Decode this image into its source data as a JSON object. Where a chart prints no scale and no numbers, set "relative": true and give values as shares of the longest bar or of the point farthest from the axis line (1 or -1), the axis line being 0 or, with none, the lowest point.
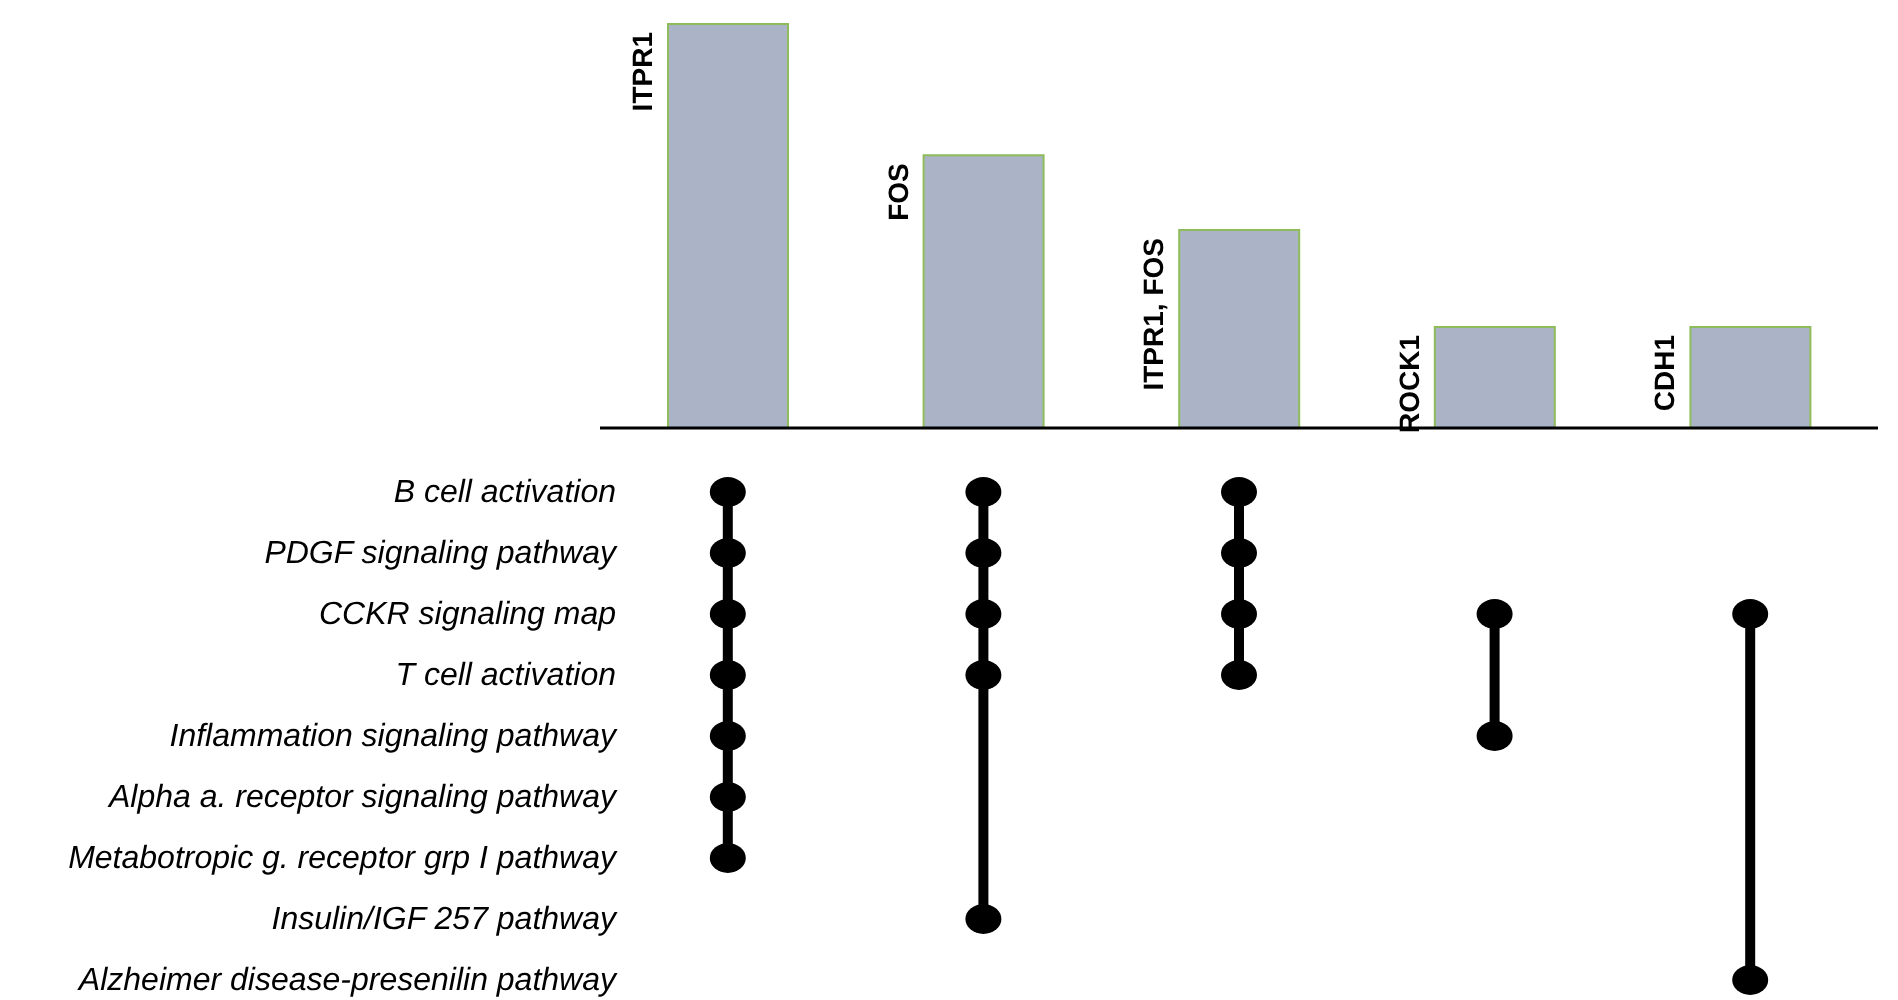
{
  "chart_data": {
    "type": "bar",
    "relative": true,
    "categories": [
      "ITPR1",
      "FOS",
      "ITPR1, FOS",
      "ROCK1",
      "CDH1"
    ],
    "values": [
      1,
      0.675,
      0.49,
      0.25,
      0.25
    ],
    "color": "#aab4c6",
    "annotations": [
      "B cell activation",
      "PDGF signaling pathway",
      "CCKR signaling map",
      "T cell activation",
      "Inflammation signaling pathway",
      "Alpha a. receptor signaling pathway",
      "Metabotropic g. receptor grp I pathway",
      "Insulin/IGF 257 pathway",
      "Alzheimer disease-presenilin pathway"
    ]
  }
}
